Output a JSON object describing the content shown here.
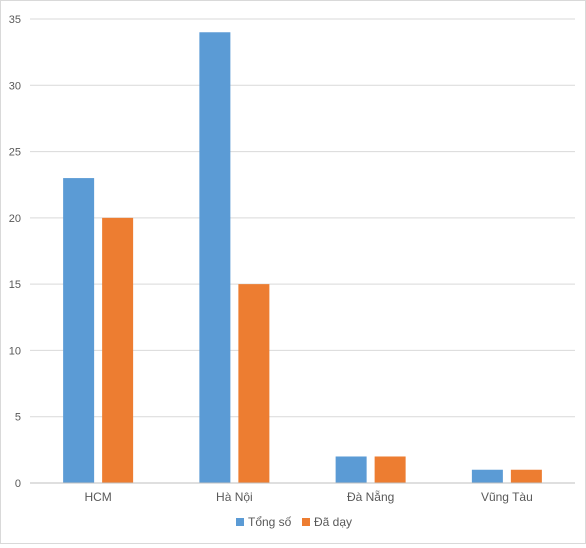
{
  "chart_data": {
    "type": "bar",
    "categories": [
      "HCM",
      "Hà Nội",
      "Đà Nẵng",
      "Vũng Tàu"
    ],
    "series": [
      {
        "name": "Tổng số",
        "color": "#5b9bd5",
        "values": [
          23,
          34,
          2,
          1
        ]
      },
      {
        "name": "Đã dạy",
        "color": "#ed7d31",
        "values": [
          20,
          15,
          2,
          1
        ]
      }
    ],
    "ylim": [
      0,
      35
    ],
    "yticks": [
      0,
      5,
      10,
      15,
      20,
      25,
      30,
      35
    ],
    "grid": true,
    "legend_position": "bottom"
  }
}
